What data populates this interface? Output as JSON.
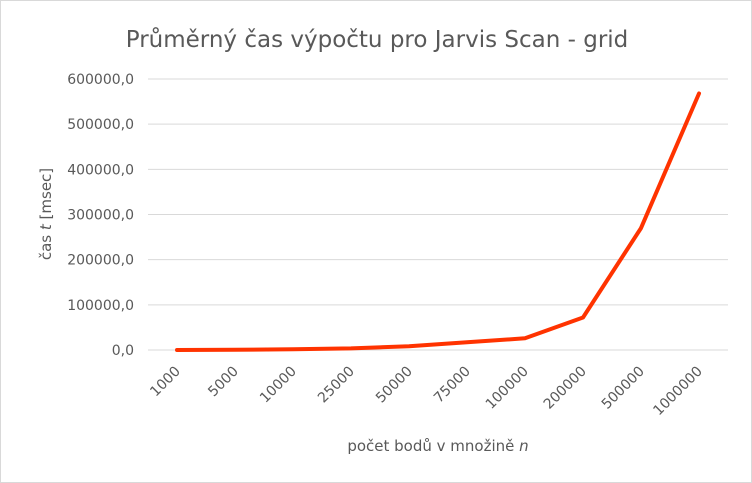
{
  "chart_data": {
    "type": "line",
    "title": "Průměrný čas výpočtu pro Jarvis Scan - grid",
    "xlabel_main": "počet bodů v množině ",
    "xlabel_var": "n",
    "ylabel_main": "čas ",
    "ylabel_var": "t",
    "ylabel_unit": " [msec]",
    "categories": [
      "1000",
      "5000",
      "10000",
      "25000",
      "50000",
      "75000",
      "100000",
      "200000",
      "500000",
      "1000000"
    ],
    "series": [
      {
        "values": [
          50,
          400,
          1500,
          3500,
          8500,
          17000,
          26000,
          72000,
          270000,
          568000
        ],
        "color": "#ff3300"
      }
    ],
    "yticks": [
      "0,0",
      "100000,0",
      "200000,0",
      "300000,0",
      "400000,0",
      "500000,0",
      "600000,0"
    ],
    "ylim": [
      0,
      600000
    ],
    "grid": true,
    "legend": "none"
  }
}
